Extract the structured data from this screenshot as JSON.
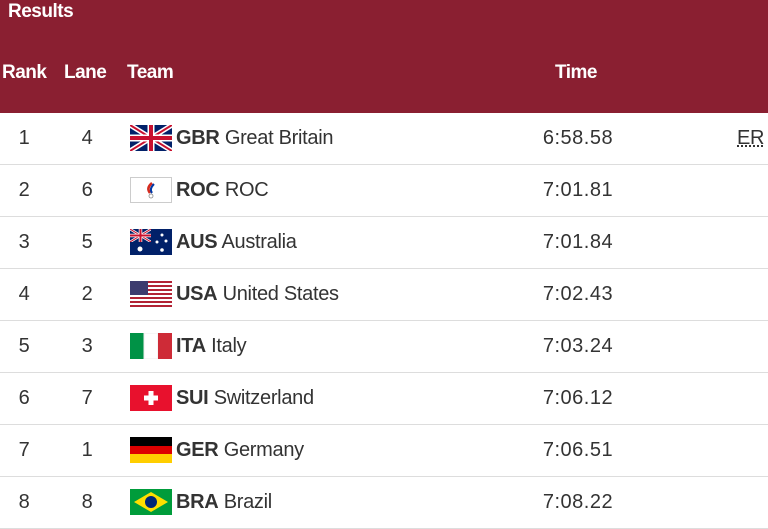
{
  "header": {
    "title": "Results",
    "columns": {
      "rank": "Rank",
      "lane": "Lane",
      "team": "Team",
      "time": "Time"
    }
  },
  "table": {
    "rows": [
      {
        "rank": 1,
        "lane": 4,
        "code": "GBR",
        "name": "Great Britain",
        "time": "6:58.58",
        "record": "ER"
      },
      {
        "rank": 2,
        "lane": 6,
        "code": "ROC",
        "name": "ROC",
        "time": "7:01.81"
      },
      {
        "rank": 3,
        "lane": 5,
        "code": "AUS",
        "name": "Australia",
        "time": "7:01.84"
      },
      {
        "rank": 4,
        "lane": 2,
        "code": "USA",
        "name": "United States",
        "time": "7:02.43"
      },
      {
        "rank": 5,
        "lane": 3,
        "code": "ITA",
        "name": "Italy",
        "time": "7:03.24"
      },
      {
        "rank": 6,
        "lane": 7,
        "code": "SUI",
        "name": "Switzerland",
        "time": "7:06.12"
      },
      {
        "rank": 7,
        "lane": 1,
        "code": "GER",
        "name": "Germany",
        "time": "7:06.51"
      },
      {
        "rank": 8,
        "lane": 8,
        "code": "BRA",
        "name": "Brazil",
        "time": "7:08.22"
      }
    ]
  }
}
